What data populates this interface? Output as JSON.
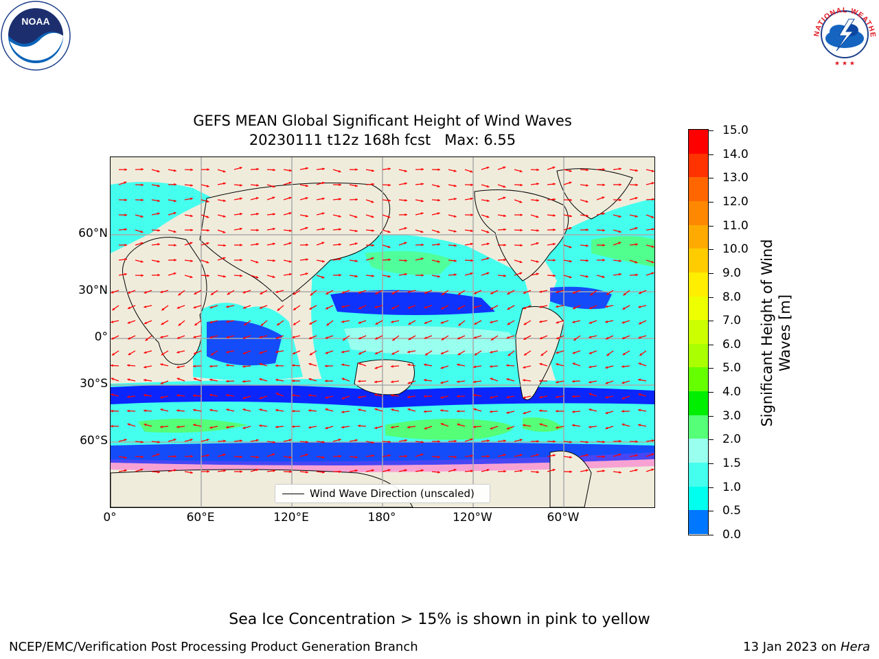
{
  "title_line1": "GEFS MEAN Global Significant Height of Wind Waves",
  "title_line2": "20230111 t12z 168h fcst   Max: 6.55",
  "lat_labels": [
    "60°N",
    "30°N",
    "0°",
    "30°S",
    "60°S"
  ],
  "lon_labels": [
    "0°",
    "60°E",
    "120°E",
    "180°",
    "120°W",
    "60°W"
  ],
  "legend_label": "Wind Wave Direction (unscaled)",
  "colorbar": {
    "title": "Significant Height of Wind Waves [m]",
    "tick_labels": [
      "15.0",
      "14.0",
      "13.0",
      "12.0",
      "11.0",
      "10.0",
      "9.0",
      "8.0",
      "7.0",
      "6.0",
      "5.0",
      "4.0",
      "3.0",
      "2.0",
      "1.5",
      "1.0",
      "0.5",
      "0.0"
    ],
    "colors": [
      "#ff0000",
      "#ff3300",
      "#ff6600",
      "#ff8800",
      "#ffaa00",
      "#ffcc00",
      "#ffee00",
      "#eeff00",
      "#ccff00",
      "#aaff00",
      "#66ff00",
      "#00ee00",
      "#55ff77",
      "#99ffee",
      "#44ffee",
      "#00ffee",
      "#0077ff",
      "#0000ff"
    ]
  },
  "logos": {
    "noaa_text": "NOAA",
    "nws_text": "NATIONAL WEATHER SERVICE"
  },
  "footer_note": "Sea Ice Concentration > 15% is shown in pink to yellow",
  "footer_left": "NCEP/EMC/Verification Post Processing Product Generation Branch",
  "footer_right_prefix": "13 Jan 2023 on ",
  "footer_right_host": "Hera"
}
